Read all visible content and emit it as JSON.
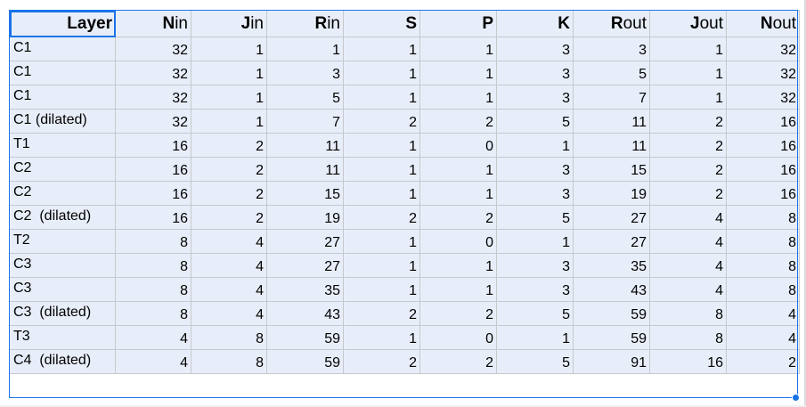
{
  "headers": [
    {
      "cap": "",
      "rest": "Layer"
    },
    {
      "cap": "N",
      "rest": "in"
    },
    {
      "cap": "J",
      "rest": "in"
    },
    {
      "cap": "R",
      "rest": "in"
    },
    {
      "cap": "S",
      "rest": ""
    },
    {
      "cap": "P",
      "rest": ""
    },
    {
      "cap": "K",
      "rest": ""
    },
    {
      "cap": "R",
      "rest": "out"
    },
    {
      "cap": "J",
      "rest": "out"
    },
    {
      "cap": "N",
      "rest": "out"
    }
  ],
  "rows": [
    [
      "C1",
      "32",
      "1",
      "1",
      "1",
      "1",
      "3",
      "3",
      "1",
      "32"
    ],
    [
      "C1",
      "32",
      "1",
      "3",
      "1",
      "1",
      "3",
      "5",
      "1",
      "32"
    ],
    [
      "C1",
      "32",
      "1",
      "5",
      "1",
      "1",
      "3",
      "7",
      "1",
      "32"
    ],
    [
      "C1 (dilated)",
      "32",
      "1",
      "7",
      "2",
      "2",
      "5",
      "11",
      "2",
      "16"
    ],
    [
      "T1",
      "16",
      "2",
      "11",
      "1",
      "0",
      "1",
      "11",
      "2",
      "16"
    ],
    [
      "C2",
      "16",
      "2",
      "11",
      "1",
      "1",
      "3",
      "15",
      "2",
      "16"
    ],
    [
      "C2",
      "16",
      "2",
      "15",
      "1",
      "1",
      "3",
      "19",
      "2",
      "16"
    ],
    [
      "C2  (dilated)",
      "16",
      "2",
      "19",
      "2",
      "2",
      "5",
      "27",
      "4",
      "8"
    ],
    [
      "T2",
      "8",
      "4",
      "27",
      "1",
      "0",
      "1",
      "27",
      "4",
      "8"
    ],
    [
      "C3",
      "8",
      "4",
      "27",
      "1",
      "1",
      "3",
      "35",
      "4",
      "8"
    ],
    [
      "C3",
      "8",
      "4",
      "35",
      "1",
      "1",
      "3",
      "43",
      "4",
      "8"
    ],
    [
      "C3  (dilated)",
      "8",
      "4",
      "43",
      "2",
      "2",
      "5",
      "59",
      "8",
      "4"
    ],
    [
      "T3",
      "4",
      "8",
      "59",
      "1",
      "0",
      "1",
      "59",
      "8",
      "4"
    ],
    [
      "C4  (dilated)",
      "4",
      "8",
      "59",
      "2",
      "2",
      "5",
      "91",
      "16",
      "2"
    ]
  ],
  "colors": {
    "cell_fill": "#e8eef9",
    "selection": "#1a73e8",
    "gridline": "#c6c8cc"
  }
}
